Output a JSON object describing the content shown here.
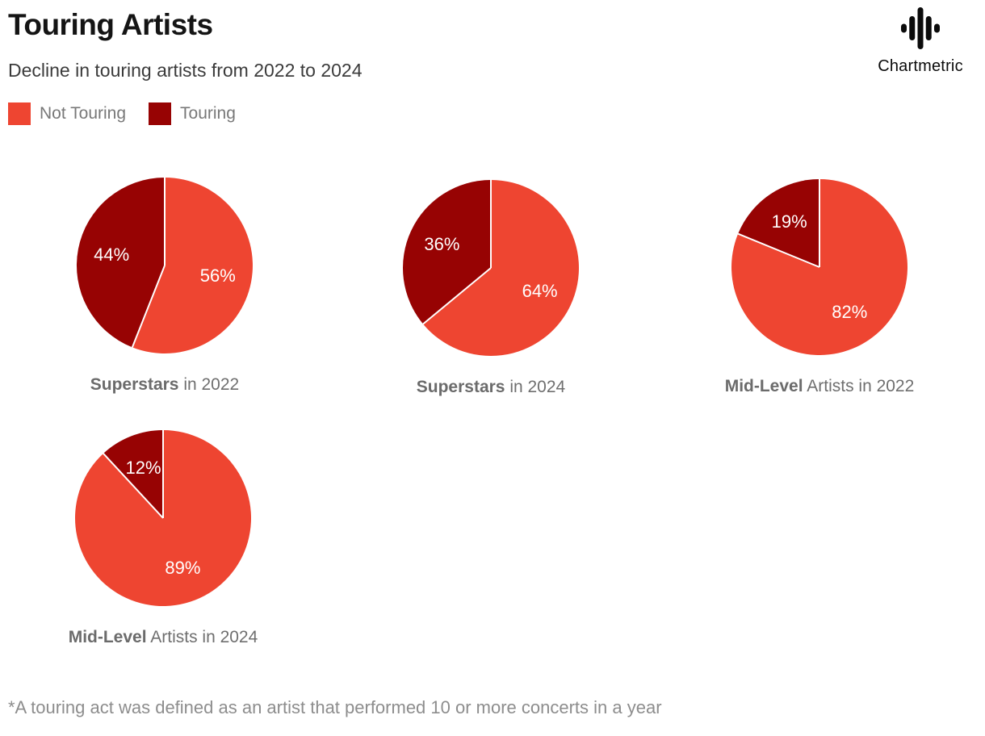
{
  "header": {
    "title": "Touring Artists",
    "subtitle": "Decline in touring artists from 2022 to 2024"
  },
  "brand": {
    "name": "Chartmetric",
    "icon": "waveform-icon"
  },
  "chart_data": {
    "type": "pie",
    "title": "Touring Artists",
    "subtitle": "Decline in touring artists from 2022 to 2024",
    "legend_position": "top-left",
    "series_labels": [
      "Not Touring",
      "Touring"
    ],
    "colors": [
      "#EE4531",
      "#970303"
    ],
    "slice_label_color": "#FFFFFF",
    "start_angle_deg": 0,
    "pies": [
      {
        "title_bold": "Superstars",
        "title_rest": " in 2022",
        "values": [
          56,
          44
        ],
        "labels": [
          "56%",
          "44%"
        ]
      },
      {
        "title_bold": "Superstars",
        "title_rest": " in 2024",
        "values": [
          64,
          36
        ],
        "labels": [
          "64%",
          "36%"
        ]
      },
      {
        "title_bold": "Mid-Level",
        "title_rest": " Artists in 2022",
        "values": [
          82,
          19
        ],
        "labels": [
          "82%",
          "19%"
        ]
      },
      {
        "title_bold": "Mid-Level",
        "title_rest": " Artists in 2024",
        "values": [
          89,
          12
        ],
        "labels": [
          "89%",
          "12%"
        ]
      }
    ]
  },
  "footnote": "*A touring act was defined as an artist that performed 10 or more concerts in a year"
}
